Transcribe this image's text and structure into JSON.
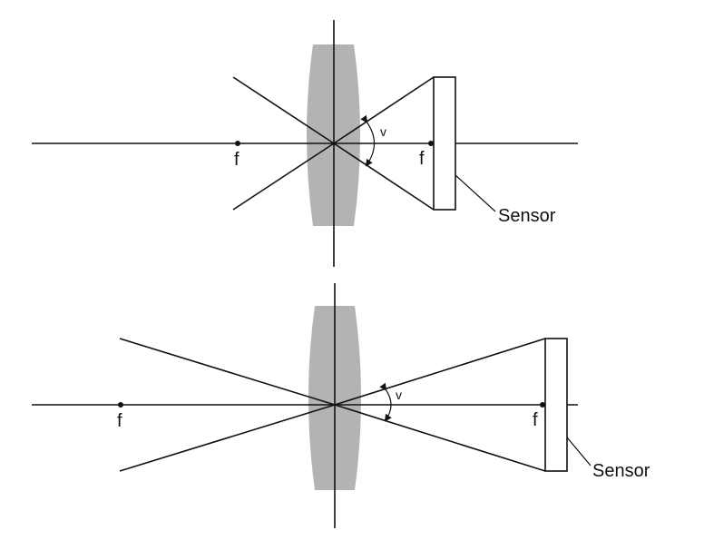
{
  "diagrams": [
    {
      "focal_label_left": "f",
      "focal_label_right": "f",
      "angle_label": "v",
      "sensor_label": "Sensor"
    },
    {
      "focal_label_left": "f",
      "focal_label_right": "f",
      "angle_label": "v",
      "sensor_label": "Sensor"
    }
  ],
  "colors": {
    "lens": "#b3b3b3",
    "lines": "#111111",
    "background": "#ffffff"
  }
}
